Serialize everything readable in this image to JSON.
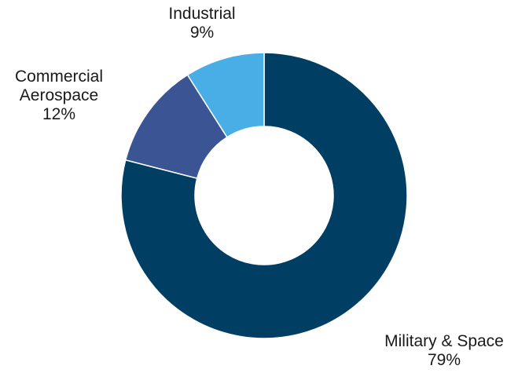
{
  "chart_data": {
    "type": "pie",
    "donut": true,
    "slices": [
      {
        "name_lines": [
          "Military & Space"
        ],
        "label": "Military & Space",
        "value": 79,
        "value_label": "79%",
        "color": "#003f63"
      },
      {
        "name_lines": [
          "Commercial",
          "Aerospace"
        ],
        "label": "Commercial Aerospace",
        "value": 12,
        "value_label": "12%",
        "color": "#3b5594"
      },
      {
        "name_lines": [
          "Industrial"
        ],
        "label": "Industrial",
        "value": 9,
        "value_label": "9%",
        "color": "#4aaee6"
      }
    ],
    "start": "12 o'clock",
    "direction": "clockwise",
    "legend": "none"
  }
}
